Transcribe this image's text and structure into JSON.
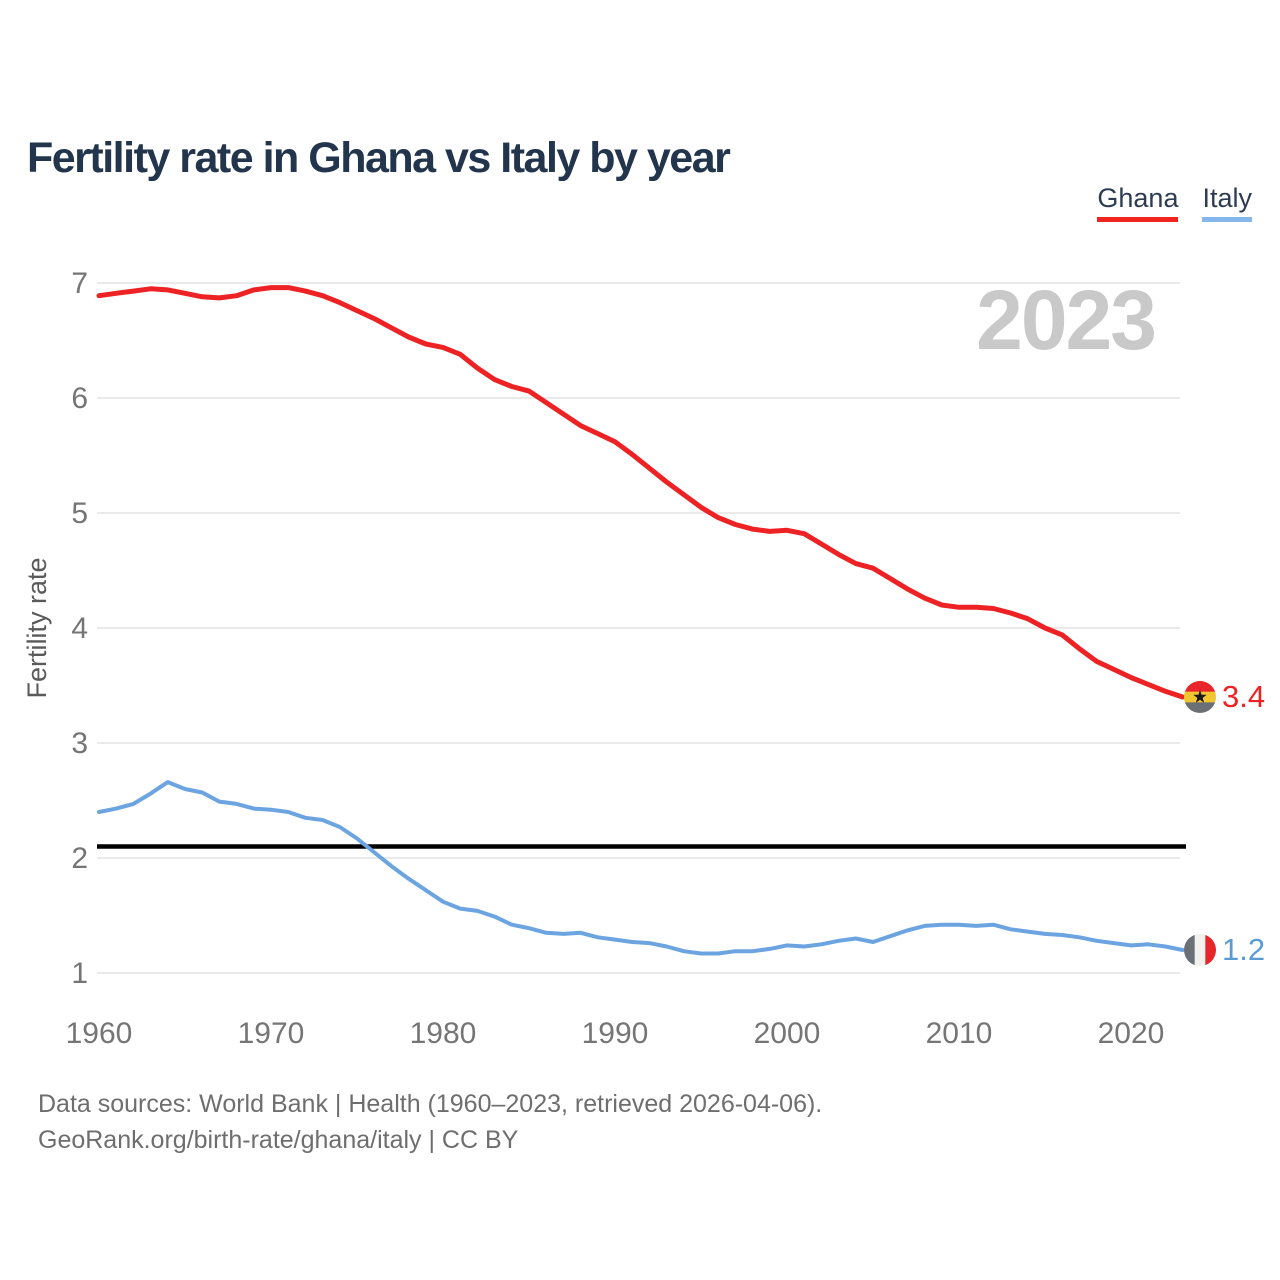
{
  "header": {
    "title": "Fertility rate in Ghana vs Italy by year"
  },
  "legend": {
    "items": [
      {
        "label": "Ghana",
        "underline_color": "#f1251f"
      },
      {
        "label": "Italy",
        "underline_color": "#85b7ea"
      }
    ]
  },
  "watermark": {
    "year_label": "2023"
  },
  "end_markers": [
    {
      "country": "Ghana",
      "value_label": "3.4",
      "color": "#ee2224"
    },
    {
      "country": "Italy",
      "value_label": "1.2",
      "color": "#5b9bd5"
    }
  ],
  "flags": {
    "ghana": {
      "orientation": "horizontal",
      "stripes": [
        "#e8252b",
        "#f2c62f",
        "#6b7076"
      ],
      "star": "#1a1a1a"
    },
    "italy": {
      "orientation": "vertical",
      "stripes": [
        "#6b7076",
        "#f1f1ee",
        "#e8252b"
      ]
    }
  },
  "source": {
    "line1": "Data sources: World Bank | Health (1960–2023, retrieved 2026-04-06).",
    "line2": "GeoRank.org/birth-rate/ghana/italy | CC BY"
  },
  "colors": {
    "background": "#ffffff",
    "title": "#22354c",
    "grid": "#eaeaea",
    "axis_text": "#757575",
    "watermark": "#c9c9c9",
    "reference_line": "#000000",
    "source_text": "#6e6e6e"
  },
  "chart_data": {
    "type": "line",
    "title": "Fertility rate in Ghana vs Italy by year",
    "xlabel": "",
    "ylabel": "Fertility rate",
    "x_range": [
      1960,
      2023
    ],
    "ylim": [
      1,
      7
    ],
    "xticks": [
      1960,
      1970,
      1980,
      1990,
      2000,
      2010,
      2020
    ],
    "yticks": [
      7,
      6,
      5,
      4,
      3,
      2,
      1
    ],
    "grid": "horizontal",
    "legend_position": "top-right",
    "reference_line": {
      "value": 2.1,
      "color": "#000000"
    },
    "x": [
      1960,
      1961,
      1962,
      1963,
      1964,
      1965,
      1966,
      1967,
      1968,
      1969,
      1970,
      1971,
      1972,
      1973,
      1974,
      1975,
      1976,
      1977,
      1978,
      1979,
      1980,
      1981,
      1982,
      1983,
      1984,
      1985,
      1986,
      1987,
      1988,
      1989,
      1990,
      1991,
      1992,
      1993,
      1994,
      1995,
      1996,
      1997,
      1998,
      1999,
      2000,
      2001,
      2002,
      2003,
      2004,
      2005,
      2006,
      2007,
      2008,
      2009,
      2010,
      2011,
      2012,
      2013,
      2014,
      2015,
      2016,
      2017,
      2018,
      2019,
      2020,
      2021,
      2022,
      2023
    ],
    "series": [
      {
        "name": "Ghana",
        "color": "#ed2224",
        "line_width": 5,
        "end_value": 3.4,
        "values": [
          6.89,
          6.91,
          6.93,
          6.95,
          6.94,
          6.91,
          6.88,
          6.87,
          6.89,
          6.94,
          6.96,
          6.96,
          6.93,
          6.89,
          6.83,
          6.76,
          6.69,
          6.61,
          6.53,
          6.47,
          6.44,
          6.38,
          6.26,
          6.16,
          6.1,
          6.06,
          5.96,
          5.86,
          5.76,
          5.69,
          5.62,
          5.51,
          5.39,
          5.27,
          5.16,
          5.05,
          4.96,
          4.9,
          4.86,
          4.84,
          4.85,
          4.82,
          4.73,
          4.64,
          4.56,
          4.52,
          4.43,
          4.34,
          4.26,
          4.2,
          4.18,
          4.18,
          4.17,
          4.13,
          4.08,
          4.0,
          3.94,
          3.82,
          3.71,
          3.64,
          3.57,
          3.51,
          3.45,
          3.4
        ]
      },
      {
        "name": "Italy",
        "color": "#6ba4e0",
        "line_width": 4,
        "end_value": 1.2,
        "values": [
          2.4,
          2.43,
          2.47,
          2.56,
          2.66,
          2.6,
          2.57,
          2.49,
          2.47,
          2.43,
          2.42,
          2.4,
          2.35,
          2.33,
          2.27,
          2.17,
          2.05,
          1.93,
          1.82,
          1.72,
          1.62,
          1.56,
          1.54,
          1.49,
          1.42,
          1.39,
          1.35,
          1.34,
          1.35,
          1.31,
          1.29,
          1.27,
          1.26,
          1.23,
          1.19,
          1.17,
          1.17,
          1.19,
          1.19,
          1.21,
          1.24,
          1.23,
          1.25,
          1.28,
          1.3,
          1.27,
          1.32,
          1.37,
          1.41,
          1.42,
          1.42,
          1.41,
          1.42,
          1.38,
          1.36,
          1.34,
          1.33,
          1.31,
          1.28,
          1.26,
          1.24,
          1.25,
          1.23,
          1.2
        ]
      }
    ]
  }
}
